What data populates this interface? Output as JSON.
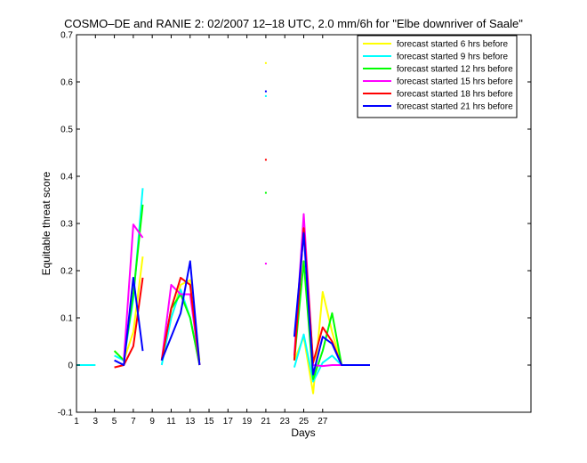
{
  "chart_data": {
    "type": "line",
    "title": "COSMO–DE and RANIE 2: 02/2007 12–18 UTC, 2.0 mm/6h for \"Elbe downriver of Saale\"",
    "xlabel": "Days",
    "ylabel": "Equitable threat score",
    "xlim": [
      1,
      49
    ],
    "ylim": [
      -0.1,
      0.7
    ],
    "xticks": [
      1,
      3,
      5,
      7,
      9,
      11,
      13,
      15,
      17,
      19,
      21,
      23,
      25,
      27
    ],
    "yticks": [
      -0.1,
      0,
      0.1,
      0.2,
      0.3,
      0.4,
      0.5,
      0.6,
      0.7
    ],
    "ytick_labels": [
      "-0.1",
      "0",
      "0.1",
      "0.2",
      "0.3",
      "0.4",
      "0.5",
      "0.6",
      "0.7"
    ],
    "grid": false,
    "legend_position": "top-right",
    "series": [
      {
        "name": "forecast started 6 hrs before",
        "color": "#ffff00",
        "segments": [
          [
            [
              1,
              0
            ],
            [
              2,
              0
            ],
            [
              3,
              0
            ]
          ],
          [
            [
              5,
              0.03
            ],
            [
              6,
              0.01
            ],
            [
              7,
              0.07
            ],
            [
              8,
              0.23
            ]
          ],
          [
            [
              10,
              0.01
            ],
            [
              11,
              0.1
            ],
            [
              12,
              0.17
            ],
            [
              13,
              0.18
            ],
            [
              14,
              0.01
            ]
          ],
          [
            [
              24,
              0.01
            ],
            [
              25,
              0.06
            ],
            [
              26,
              -0.06
            ],
            [
              27,
              0.155
            ],
            [
              28,
              0.07
            ],
            [
              29,
              0
            ]
          ]
        ],
        "points": [
          [
            21,
            0.64
          ]
        ]
      },
      {
        "name": "forecast started 9 hrs before",
        "color": "#00ffff",
        "segments": [
          [
            [
              1,
              0
            ],
            [
              2,
              0
            ],
            [
              3,
              0
            ]
          ],
          [
            [
              5,
              0.02
            ],
            [
              6,
              0.01
            ],
            [
              7,
              0.14
            ],
            [
              8,
              0.375
            ]
          ],
          [
            [
              10,
              0
            ],
            [
              11,
              0.1
            ],
            [
              12,
              0.16
            ],
            [
              13,
              0.1
            ],
            [
              14,
              0
            ]
          ],
          [
            [
              24,
              -0.005
            ],
            [
              25,
              0.065
            ],
            [
              26,
              -0.035
            ],
            [
              27,
              0.005
            ],
            [
              28,
              0.02
            ],
            [
              29,
              0
            ]
          ]
        ],
        "points": [
          [
            21,
            0.57
          ]
        ]
      },
      {
        "name": "forecast started 12 hrs before",
        "color": "#00ff00",
        "segments": [
          [
            [
              5,
              0.03
            ],
            [
              6,
              0.01
            ],
            [
              7,
              0.15
            ],
            [
              8,
              0.34
            ]
          ],
          [
            [
              10,
              0.01
            ],
            [
              11,
              0.12
            ],
            [
              12,
              0.15
            ],
            [
              13,
              0.1
            ],
            [
              14,
              0
            ]
          ],
          [
            [
              24,
              0.01
            ],
            [
              25,
              0.22
            ],
            [
              26,
              -0.03
            ],
            [
              27,
              0.03
            ],
            [
              28,
              0.11
            ],
            [
              29,
              0
            ]
          ]
        ],
        "points": [
          [
            21,
            0.365
          ]
        ]
      },
      {
        "name": "forecast started 15 hrs before",
        "color": "#ff00ff",
        "segments": [
          [
            [
              6,
              0.01
            ],
            [
              7,
              0.298
            ],
            [
              8,
              0.27
            ]
          ],
          [
            [
              10,
              0.01
            ],
            [
              11,
              0.17
            ],
            [
              12,
              0.15
            ],
            [
              13,
              0.15
            ],
            [
              14,
              0
            ]
          ],
          [
            [
              24,
              0.02
            ],
            [
              25,
              0.32
            ],
            [
              26,
              0
            ],
            [
              27,
              -0.002
            ],
            [
              28,
              0
            ],
            [
              29,
              0
            ]
          ]
        ],
        "points": [
          [
            21,
            0.215
          ]
        ]
      },
      {
        "name": "forecast started 18 hrs before",
        "color": "#ff0000",
        "segments": [
          [
            [
              5,
              -0.005
            ],
            [
              6,
              0
            ],
            [
              7,
              0.04
            ],
            [
              8,
              0.185
            ]
          ],
          [
            [
              10,
              0.01
            ],
            [
              11,
              0.12
            ],
            [
              12,
              0.185
            ],
            [
              13,
              0.17
            ],
            [
              14,
              0
            ]
          ],
          [
            [
              24,
              0.01
            ],
            [
              25,
              0.29
            ],
            [
              26,
              0.005
            ],
            [
              27,
              0.08
            ],
            [
              28,
              0.05
            ],
            [
              29,
              0
            ]
          ]
        ],
        "points": [
          [
            21,
            0.435
          ]
        ]
      },
      {
        "name": "forecast started 21 hrs before",
        "color": "#0000ff",
        "segments": [
          [
            [
              5,
              0.01
            ],
            [
              6,
              0
            ],
            [
              7,
              0.185
            ],
            [
              8,
              0.03
            ]
          ],
          [
            [
              10,
              0.01
            ],
            [
              11,
              0.06
            ],
            [
              12,
              0.11
            ],
            [
              13,
              0.22
            ],
            [
              14,
              0
            ]
          ],
          [
            [
              24,
              0.06
            ],
            [
              25,
              0.28
            ],
            [
              26,
              -0.02
            ],
            [
              27,
              0.06
            ],
            [
              28,
              0.045
            ],
            [
              29,
              0
            ],
            [
              30,
              0
            ],
            [
              31,
              0
            ],
            [
              32,
              0
            ]
          ]
        ],
        "points": [
          [
            21,
            0.58
          ]
        ]
      }
    ]
  }
}
